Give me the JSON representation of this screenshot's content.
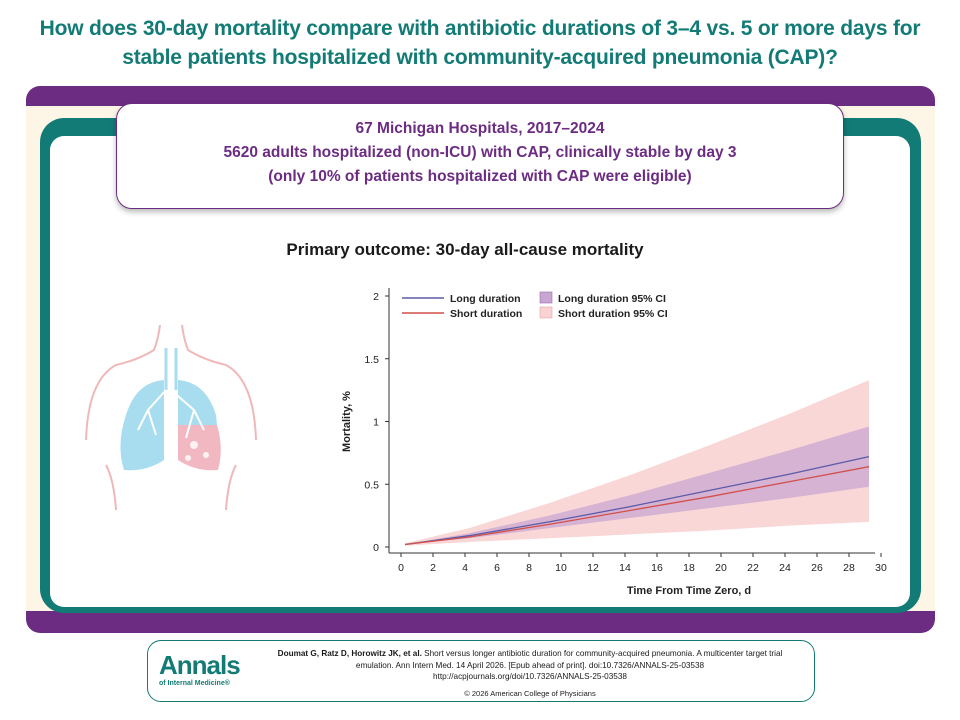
{
  "title": {
    "line1": "How does 30-day mortality compare with antibiotic durations of 3–4 vs. 5 or more days for",
    "line2": "stable patients hospitalized with community-acquired pneumonia (CAP)?"
  },
  "study": {
    "line1": "67 Michigan Hospitals, 2017–2024",
    "line2": "5620 adults hospitalized (non-ICU) with CAP, clinically stable by day 3",
    "line3": "(only 10% of patients hospitalized with CAP were eligible)"
  },
  "outcome_heading": "Primary outcome: 30-day all-cause mortality",
  "illustration": {
    "icon": "lungs-icon"
  },
  "chart_data": {
    "type": "line",
    "xlabel": "Time From Time Zero, d",
    "ylabel": "Mortality, %",
    "xlim": [
      0,
      30
    ],
    "ylim": [
      0,
      2
    ],
    "x_ticks": [
      0,
      2,
      4,
      6,
      8,
      10,
      12,
      14,
      16,
      18,
      20,
      22,
      24,
      26,
      28,
      30
    ],
    "y_ticks": [
      0,
      0.5,
      1,
      1.5,
      2
    ],
    "y_tick_labels": [
      "0",
      "0.5",
      "1",
      "1.5",
      "2"
    ],
    "grid": false,
    "legend_position": "top-left",
    "legend": {
      "long_line": "Long duration",
      "short_line": "Short duration",
      "long_ci": "Long duration 95% CI",
      "short_ci": "Short duration 95% CI"
    },
    "colors": {
      "long_line": "#5b5ba8",
      "short_line": "#d2504a",
      "long_ci": "#c9a6d2",
      "short_ci": "#f9d3d3"
    },
    "x": [
      1,
      5,
      10,
      15,
      20,
      25,
      30
    ],
    "series": [
      {
        "name": "Long duration",
        "values": [
          0.02,
          0.09,
          0.2,
          0.32,
          0.45,
          0.58,
          0.72
        ],
        "ci_lower": [
          0.02,
          0.07,
          0.15,
          0.23,
          0.31,
          0.39,
          0.48
        ],
        "ci_upper": [
          0.02,
          0.11,
          0.25,
          0.41,
          0.59,
          0.77,
          0.96
        ]
      },
      {
        "name": "Short duration",
        "values": [
          0.02,
          0.08,
          0.18,
          0.29,
          0.4,
          0.52,
          0.64
        ],
        "ci_lower": [
          0.01,
          0.04,
          0.07,
          0.1,
          0.13,
          0.17,
          0.2
        ],
        "ci_upper": [
          0.03,
          0.15,
          0.35,
          0.57,
          0.81,
          1.06,
          1.33
        ]
      }
    ]
  },
  "footer": {
    "logo_main": "Annals",
    "logo_sub": "of Internal Medicine®",
    "authors": "Doumat G, Ratz D, Horowitz JK, et al.",
    "citation": "Short versus longer antibiotic duration for community-acquired pneumonia. A multicenter target trial",
    "citation2": "emulation. Ann Intern Med. 14 April 2026. [Epub ahead of print]. doi:10.7326/ANNALS-25-03538",
    "url": "http://acpjournals.org/doi/10.7326/ANNALS-25-03538",
    "copyright": "© 2026 American College of Physicians"
  }
}
